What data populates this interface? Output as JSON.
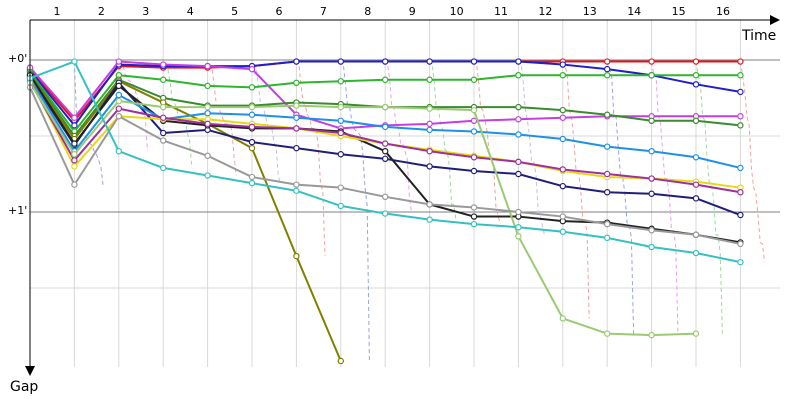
{
  "chart_data": {
    "type": "line",
    "title": "",
    "xlabel": "Time",
    "ylabel": "Gap",
    "x_ticks": [
      "1",
      "2",
      "3",
      "4",
      "5",
      "6",
      "7",
      "8",
      "9",
      "10",
      "11",
      "12",
      "13",
      "14",
      "15",
      "16"
    ],
    "y_ticks": [
      "+0'",
      "+1'"
    ],
    "xlim": [
      1,
      17.7
    ],
    "ylim": [
      0,
      2
    ],
    "grid": true,
    "legend": "none",
    "series": [
      {
        "color": "#e8141d",
        "values": [
          0.06,
          0.4,
          0.04,
          0.05,
          0.05,
          0.04,
          0.01,
          0.01,
          0.01,
          0.01,
          0.01,
          0.01,
          0.01,
          0.01,
          0.01,
          0.01,
          0.01
        ]
      },
      {
        "color": "#1f1fcc",
        "values": [
          0.07,
          0.43,
          0.03,
          0.04,
          0.04,
          0.04,
          0.01,
          0.01,
          0.01,
          0.01,
          0.01,
          0.01,
          0.03,
          0.06,
          0.1,
          0.16,
          0.21
        ]
      },
      {
        "color": "#c43fe0",
        "values": [
          0.05,
          0.38,
          0.01,
          0.03,
          0.04,
          0.06,
          0.36,
          0.45,
          0.43,
          0.42,
          0.4,
          0.39,
          0.38,
          0.37,
          0.37,
          0.37,
          0.37
        ]
      },
      {
        "color": "#2db52d",
        "values": [
          0.08,
          0.47,
          0.1,
          0.13,
          0.17,
          0.18,
          0.15,
          0.14,
          0.13,
          0.13,
          0.13,
          0.1,
          0.1,
          0.1,
          0.1,
          0.1,
          0.1
        ]
      },
      {
        "color": "#3a8a2e",
        "values": [
          0.09,
          0.5,
          0.13,
          0.25,
          0.3,
          0.3,
          0.28,
          0.29,
          0.31,
          0.31,
          0.31,
          0.31,
          0.33,
          0.36,
          0.4,
          0.4,
          0.43
        ]
      },
      {
        "color": "#808000",
        "values": [
          0.1,
          0.52,
          0.14,
          0.28,
          0.42,
          0.58,
          1.29,
          1.98,
          null,
          null,
          null,
          null,
          null,
          null,
          null,
          null,
          null
        ]
      },
      {
        "color": "#1f1f7a",
        "values": [
          0.11,
          0.56,
          0.15,
          0.48,
          0.46,
          0.54,
          0.58,
          0.62,
          0.65,
          0.7,
          0.73,
          0.75,
          0.83,
          0.87,
          0.88,
          0.91,
          1.02
        ]
      },
      {
        "color": "#222222",
        "values": [
          0.1,
          0.55,
          0.17,
          0.4,
          0.43,
          0.45,
          0.45,
          0.47,
          0.6,
          0.95,
          1.03,
          1.03,
          1.06,
          1.07,
          1.11,
          1.15,
          1.2
        ]
      },
      {
        "color": "#1e90e8",
        "values": [
          0.12,
          0.6,
          0.23,
          0.39,
          0.35,
          0.36,
          0.38,
          0.4,
          0.44,
          0.46,
          0.47,
          0.49,
          0.52,
          0.57,
          0.6,
          0.64,
          0.71
        ]
      },
      {
        "color": "#e6d817",
        "values": [
          0.13,
          0.7,
          0.37,
          0.39,
          0.39,
          0.42,
          0.45,
          0.5,
          0.55,
          0.59,
          0.63,
          0.67,
          0.73,
          0.77,
          0.78,
          0.8,
          0.84
        ]
      },
      {
        "color": "#9e2f9e",
        "values": [
          0.14,
          0.66,
          0.32,
          0.38,
          0.42,
          0.44,
          0.45,
          0.48,
          0.55,
          0.6,
          0.64,
          0.67,
          0.72,
          0.75,
          0.78,
          0.82,
          0.87
        ]
      },
      {
        "color": "#9aca72",
        "values": [
          0.15,
          0.62,
          0.27,
          0.31,
          0.31,
          0.31,
          0.3,
          0.31,
          0.31,
          0.32,
          0.33,
          1.16,
          1.7,
          1.8,
          1.81,
          1.8,
          null
        ]
      },
      {
        "color": "#999999",
        "values": [
          0.18,
          0.82,
          0.37,
          0.53,
          0.63,
          0.77,
          0.82,
          0.84,
          0.9,
          0.95,
          0.97,
          1.0,
          1.03,
          1.08,
          1.12,
          1.15,
          1.21
        ]
      },
      {
        "color": "#36c0c0",
        "values": [
          0.12,
          0.01,
          0.6,
          0.71,
          0.76,
          0.81,
          0.86,
          0.96,
          1.01,
          1.05,
          1.08,
          1.1,
          1.13,
          1.17,
          1.23,
          1.27,
          1.33
        ]
      }
    ]
  }
}
